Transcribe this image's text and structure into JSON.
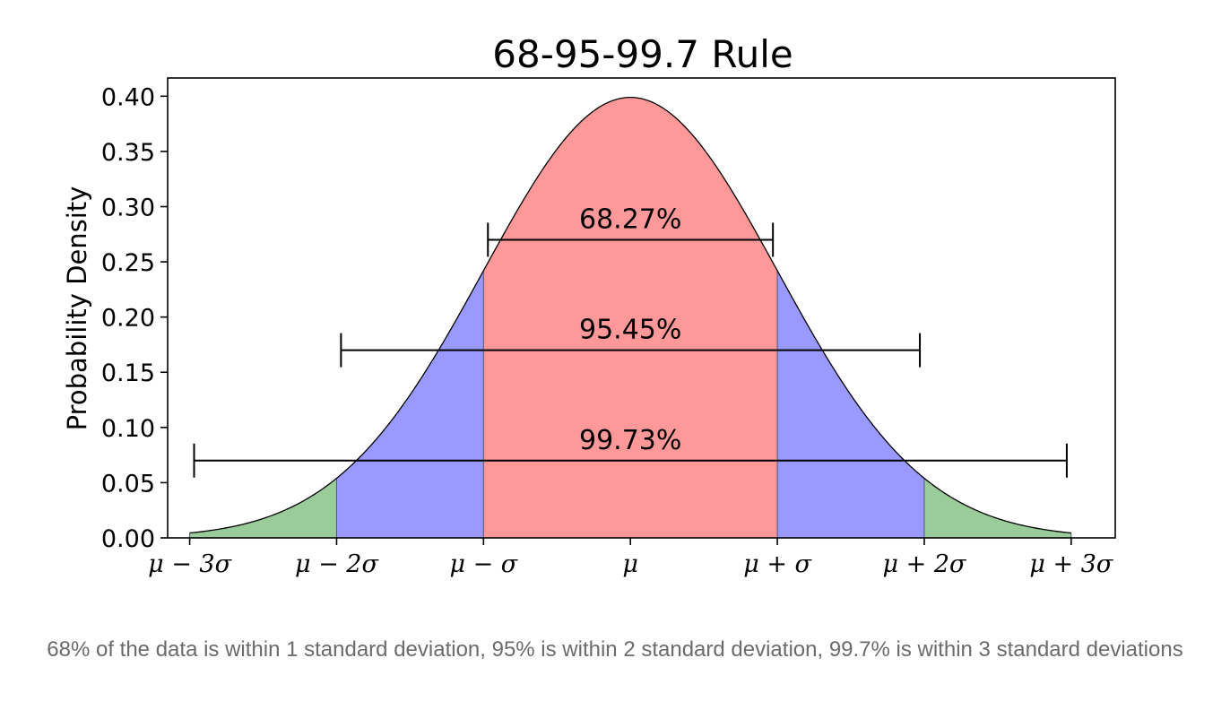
{
  "chart_data": {
    "type": "area",
    "title": "68-95-99.7 Rule",
    "xlabel": "",
    "ylabel": "Probability Density",
    "xlim": [
      -3.15,
      3.3
    ],
    "ylim": [
      0,
      0.4165
    ],
    "yticks": [
      0.0,
      0.05,
      0.1,
      0.15,
      0.2,
      0.25,
      0.3,
      0.35,
      0.4
    ],
    "ytick_labels": [
      "0.00",
      "0.05",
      "0.10",
      "0.15",
      "0.20",
      "0.25",
      "0.30",
      "0.35",
      "0.40"
    ],
    "xticks": [
      -3,
      -2,
      -1,
      0,
      1,
      2,
      3
    ],
    "xtick_labels": [
      "μ − 3σ",
      "μ − 2σ",
      "μ − σ",
      "μ",
      "μ + σ",
      "μ + 2σ",
      "μ + 3σ"
    ],
    "curve": {
      "name": "Normal PDF",
      "mean": 0,
      "std": 1,
      "x_range": [
        -3,
        3
      ]
    },
    "regions": [
      {
        "name": "within 1σ",
        "from": -1,
        "to": 1,
        "color": "#ff9999"
      },
      {
        "name": "1σ to 2σ",
        "from": -2,
        "to": -1,
        "color": "#9999ff"
      },
      {
        "name": "1σ to 2σ",
        "from": 1,
        "to": 2,
        "color": "#9999ff"
      },
      {
        "name": "2σ to 3σ",
        "from": -3,
        "to": -2,
        "color": "#99cc99"
      },
      {
        "name": "2σ to 3σ",
        "from": 2,
        "to": 3,
        "color": "#99cc99"
      }
    ],
    "brackets": [
      {
        "label": "68.27%",
        "from": -0.97,
        "to": 0.97,
        "y": 0.27
      },
      {
        "label": "95.45%",
        "from": -1.97,
        "to": 1.97,
        "y": 0.17
      },
      {
        "label": "99.73%",
        "from": -2.97,
        "to": 2.97,
        "y": 0.07
      }
    ],
    "grid": false,
    "legend": "none"
  },
  "caption": "68% of the data is within 1 standard deviation, 95% is within 2 standard deviation, 99.7% is within 3 standard deviations"
}
